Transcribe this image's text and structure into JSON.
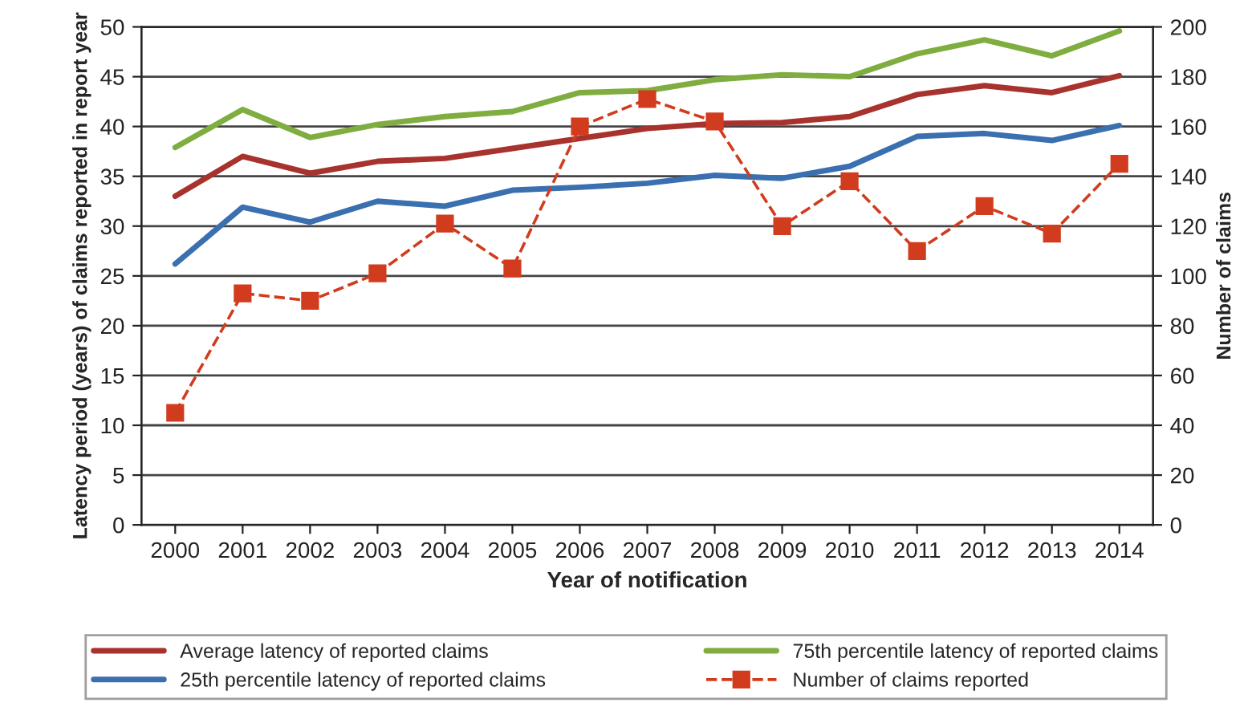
{
  "chart_data": {
    "type": "line",
    "categories": [
      "2000",
      "2001",
      "2002",
      "2003",
      "2004",
      "2005",
      "2006",
      "2007",
      "2008",
      "2009",
      "2010",
      "2011",
      "2012",
      "2013",
      "2014"
    ],
    "xlabel": "Year of notification",
    "ylabel": "Latency period (years) of claims reported in report year",
    "y2label": "Number of claims",
    "series": [
      {
        "name": "Average latency of reported claims",
        "color": "#a8322d",
        "values": [
          33,
          37,
          35.3,
          36.5,
          36.8,
          37.8,
          38.8,
          39.8,
          40.3,
          40.4,
          41,
          43.2,
          44.1,
          43.4,
          45.1
        ]
      },
      {
        "name": "25th percentile latency of reported claims",
        "color": "#3a6fb0",
        "values": [
          26.2,
          31.9,
          30.4,
          32.5,
          32,
          33.6,
          33.9,
          34.3,
          35.1,
          34.8,
          36,
          39,
          39.3,
          38.6,
          40.1
        ]
      },
      {
        "name": "75th percentile latency of reported claims",
        "color": "#7fad3f",
        "values": [
          37.9,
          41.7,
          38.9,
          40.2,
          41,
          41.5,
          43.4,
          43.6,
          44.7,
          45.2,
          45,
          47.3,
          48.7,
          47.1,
          49.6
        ]
      },
      {
        "name": "Number of claims reported",
        "color": "#d23c1e",
        "axis": "y2",
        "marker": "square",
        "line_style": "dashed",
        "values": [
          45,
          93,
          90,
          101,
          121,
          103,
          160,
          171,
          162,
          120,
          138,
          110,
          128,
          117,
          145
        ]
      }
    ],
    "ylim": [
      0,
      50
    ],
    "yticks": [
      0,
      5,
      10,
      15,
      20,
      25,
      30,
      35,
      40,
      45,
      50
    ],
    "y2lim": [
      0,
      200
    ],
    "y2ticks": [
      0,
      20,
      40,
      60,
      80,
      100,
      120,
      140,
      160,
      180,
      200
    ],
    "grid": "y",
    "legend": "bottom"
  }
}
